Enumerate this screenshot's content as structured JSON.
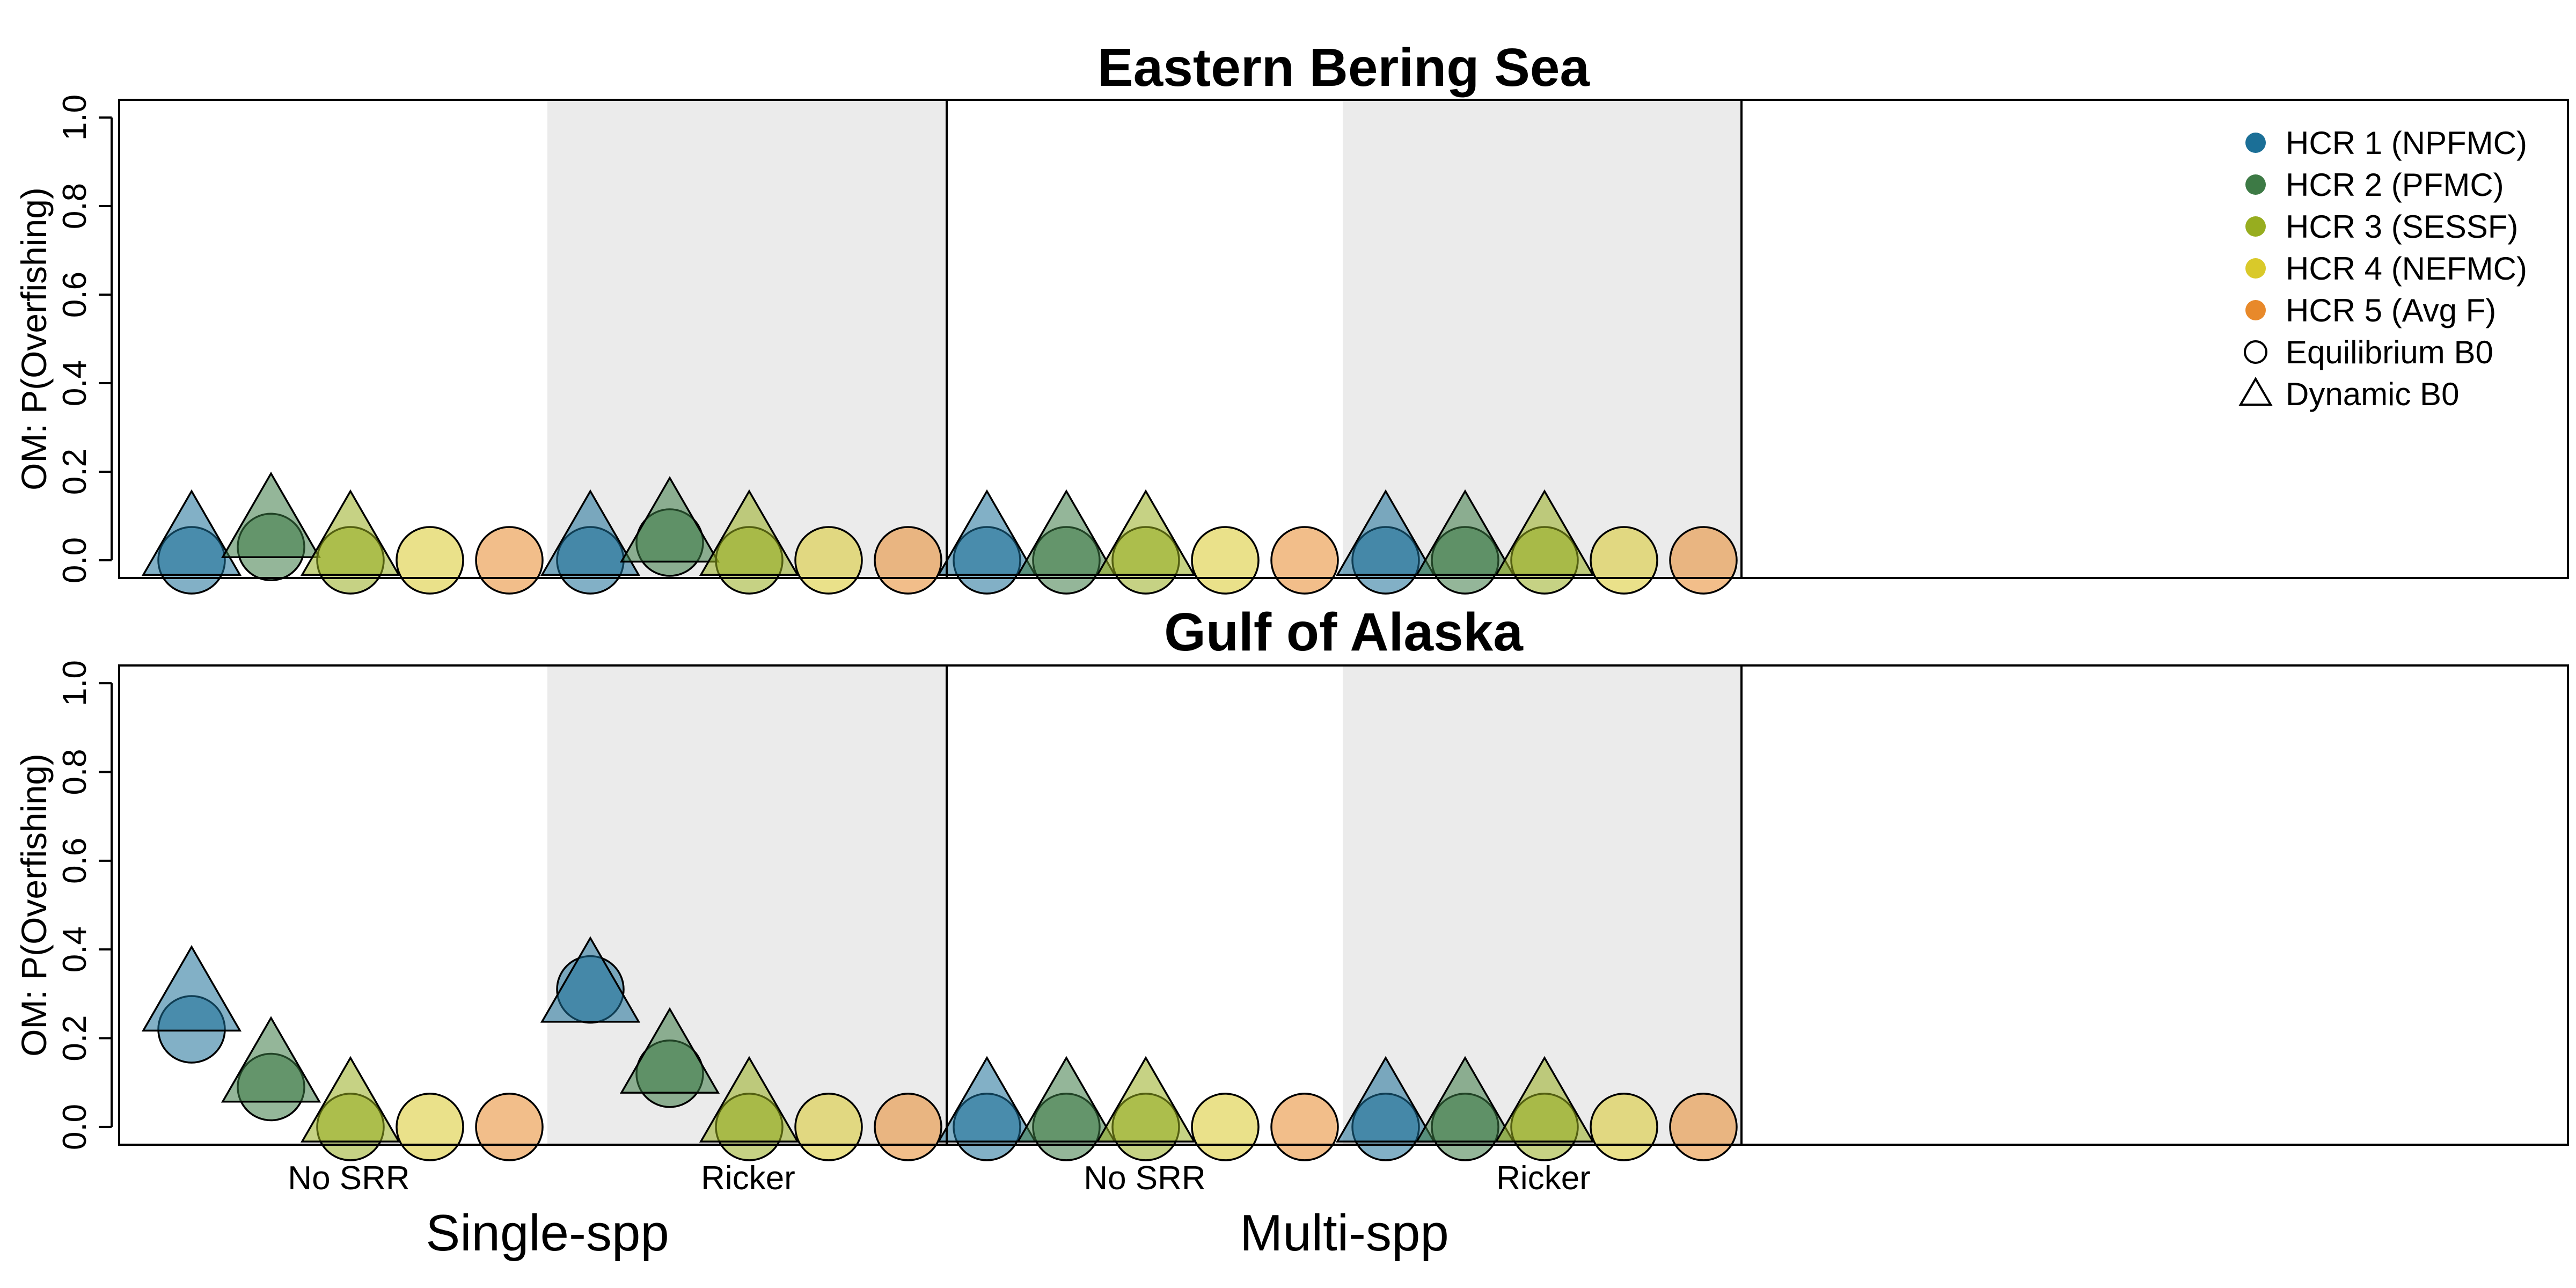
{
  "chart_data": {
    "type": "scatter",
    "ylim": [
      0,
      1
    ],
    "yticks": [
      0.0,
      0.2,
      0.4,
      0.6,
      0.8,
      1.0
    ],
    "ytick_labels": [
      "0.0",
      "0.2",
      "0.4",
      "0.6",
      "0.8",
      "1.0"
    ],
    "ylabel": "OM: P(Overfishing)",
    "x_tick_labels": [
      "No SRR",
      "Ricker",
      "No SRR",
      "Ricker"
    ],
    "group_labels": [
      "Single-spp",
      "Multi-spp"
    ],
    "colors": {
      "hcr1": "#1b6f97",
      "hcr2": "#3d7a45",
      "hcr3": "#97ad1f",
      "hcr4": "#d9c92a",
      "hcr5": "#e8892a",
      "shade": "#ebebeb"
    },
    "legend": {
      "position": "top-right",
      "items": [
        {
          "label": "HCR 1 (NPFMC)",
          "symbol": "filled-circle",
          "color_key": "hcr1"
        },
        {
          "label": "HCR 2 (PFMC)",
          "symbol": "filled-circle",
          "color_key": "hcr2"
        },
        {
          "label": "HCR 3 (SESSF)",
          "symbol": "filled-circle",
          "color_key": "hcr3"
        },
        {
          "label": "HCR 4 (NEFMC)",
          "symbol": "filled-circle",
          "color_key": "hcr4"
        },
        {
          "label": "HCR 5 (Avg F)",
          "symbol": "filled-circle",
          "color_key": "hcr5"
        },
        {
          "label": "Equilibrium B0",
          "symbol": "open-circle",
          "color_key": ""
        },
        {
          "label": "Dynamic B0",
          "symbol": "open-triangle",
          "color_key": ""
        }
      ]
    },
    "series_names": [
      "HCR 1 (NPFMC)",
      "HCR 2 (PFMC)",
      "HCR 3 (SESSF)",
      "HCR 4 (NEFMC)",
      "HCR 5 (Avg F)"
    ],
    "panels": [
      {
        "title": "Eastern Bering Sea",
        "equilibrium_B0": [
          [
            0.0,
            0.03,
            0.0,
            0.0,
            0.0
          ],
          [
            0.0,
            0.04,
            0.0,
            0.0,
            0.0
          ],
          [
            0.0,
            0.0,
            0.0,
            0.0,
            0.0
          ],
          [
            0.0,
            0.0,
            0.0,
            0.0,
            0.0
          ]
        ],
        "dynamic_B0": [
          [
            0.03,
            0.07,
            0.03,
            null,
            null
          ],
          [
            0.03,
            0.06,
            0.03,
            null,
            null
          ],
          [
            0.03,
            0.03,
            0.03,
            null,
            null
          ],
          [
            0.03,
            0.03,
            0.03,
            null,
            null
          ]
        ]
      },
      {
        "title": "Gulf of Alaska",
        "equilibrium_B0": [
          [
            0.22,
            0.09,
            0.0,
            0.0,
            0.0
          ],
          [
            0.31,
            0.12,
            0.0,
            0.0,
            0.0
          ],
          [
            0.0,
            0.0,
            0.0,
            0.0,
            0.0
          ],
          [
            0.0,
            0.0,
            0.0,
            0.0,
            0.0
          ]
        ],
        "dynamic_B0": [
          [
            0.28,
            0.12,
            0.03,
            null,
            null
          ],
          [
            0.3,
            0.14,
            0.03,
            null,
            null
          ],
          [
            0.03,
            0.03,
            0.03,
            null,
            null
          ],
          [
            0.03,
            0.03,
            0.03,
            null,
            null
          ]
        ]
      }
    ]
  }
}
